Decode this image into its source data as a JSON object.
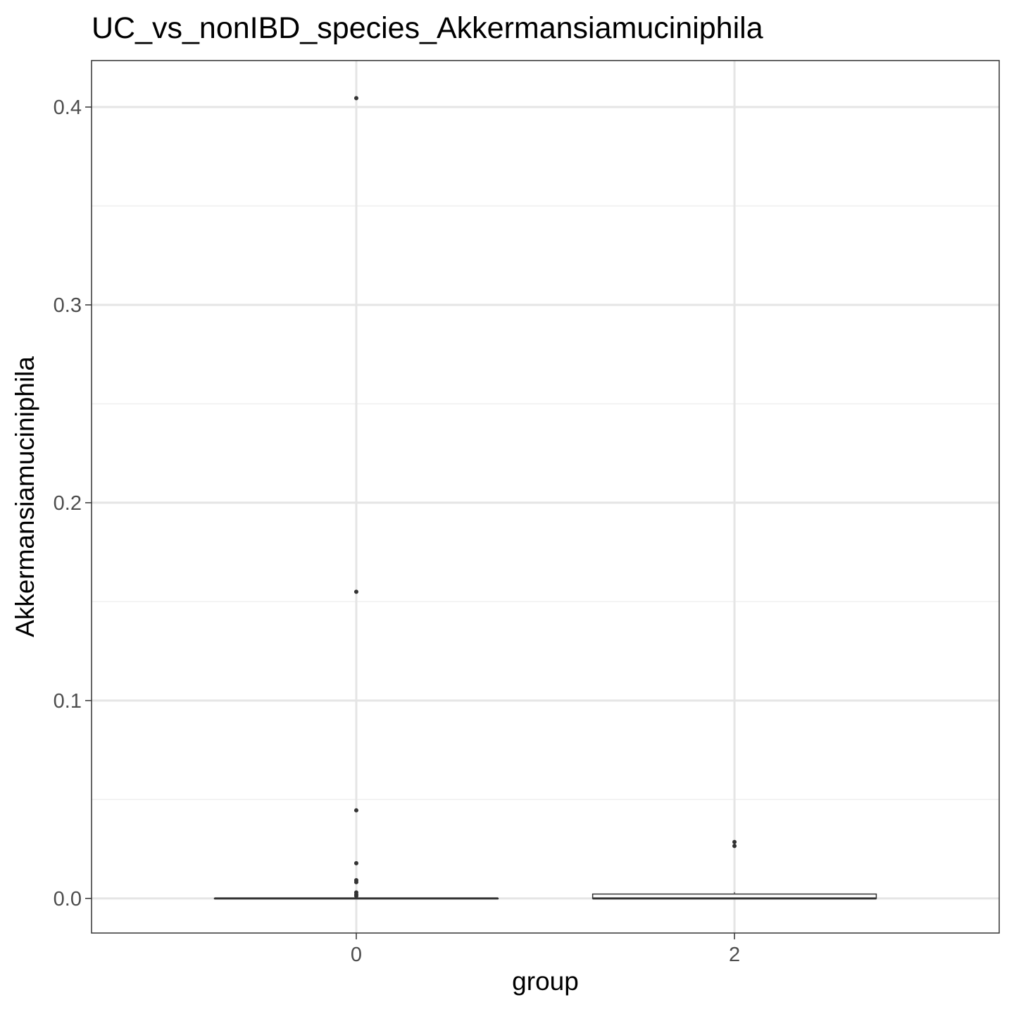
{
  "chart_data": {
    "type": "box",
    "title": "UC_vs_nonIBD_species_Akkermansiamuciniphila",
    "xlabel": "group",
    "ylabel": "Akkermansiamuciniphila",
    "categories": [
      "0",
      "2"
    ],
    "ylim": [
      -0.0175,
      0.4235
    ],
    "yticks": [
      0.0,
      0.1,
      0.2,
      0.3,
      0.4
    ],
    "ytick_labels": [
      "0.0",
      "0.1",
      "0.2",
      "0.3",
      "0.4"
    ],
    "grid": true,
    "boxes": [
      {
        "group": "0",
        "min": 0.0,
        "q1": 0.0,
        "median": 0.0,
        "q3": 0.0,
        "max": 0.0,
        "outliers": [
          0.4045,
          0.155,
          0.0445,
          0.0178,
          0.0092,
          0.0082,
          0.003,
          0.002,
          0.0012
        ]
      },
      {
        "group": "2",
        "min": 0.0,
        "q1": 0.0,
        "median": 0.0,
        "q3": 0.0022,
        "max": 0.0032,
        "outliers": [
          0.0285,
          0.0265
        ]
      }
    ],
    "colors": {
      "grid_major": "#e5e5e5",
      "grid_minor": "#efefef",
      "box_line": "#333333",
      "box_fill": "#ffffff",
      "point": "#333333",
      "panel_border": "#333333"
    }
  }
}
